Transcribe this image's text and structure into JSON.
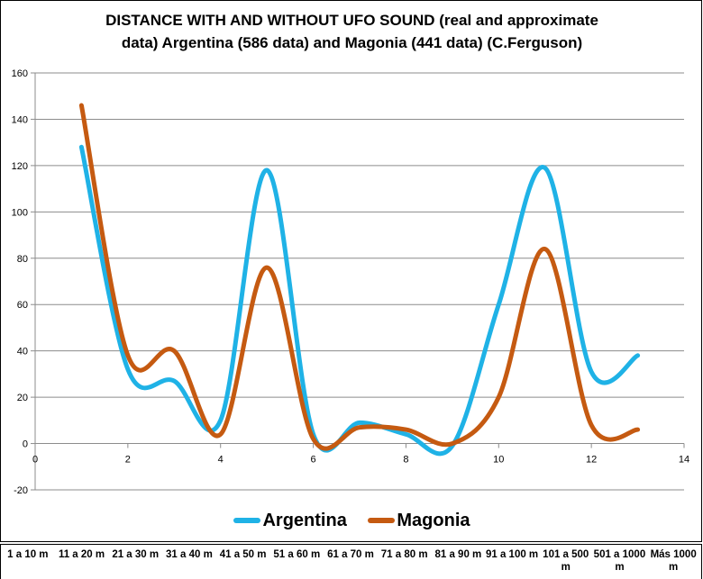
{
  "chart_data": {
    "type": "line",
    "title_lines": [
      "DISTANCE WITH AND WITHOUT UFO SOUND (real and approximate",
      "data) Argentina (586 data) and Magonia (441 data) (C.Ferguson)"
    ],
    "xlim": [
      0,
      14
    ],
    "ylim": [
      -20,
      160
    ],
    "x_ticks": [
      "0",
      "2",
      "4",
      "6",
      "8",
      "10",
      "12",
      "14"
    ],
    "y_ticks": [
      "-20",
      "0",
      "20",
      "40",
      "60",
      "80",
      "100",
      "120",
      "140",
      "160"
    ],
    "grid": "horizontal",
    "legend_position": "bottom",
    "x": [
      1,
      2,
      3,
      4,
      5,
      6,
      7,
      8,
      9,
      10,
      11,
      12,
      13
    ],
    "series": [
      {
        "name": "Argentina",
        "color": "#1fb2e6",
        "values": [
          128,
          32,
          27,
          10,
          118,
          4,
          9,
          4,
          -1,
          60,
          119,
          31,
          38
        ]
      },
      {
        "name": "Magonia",
        "color": "#c55a11",
        "values": [
          146,
          38,
          40,
          4,
          76,
          2,
          7,
          6,
          0,
          20,
          84,
          8,
          6
        ]
      }
    ],
    "categories": [
      "1 a 10 m",
      "11 a 20 m",
      "21 a 30 m",
      "31 a 40 m",
      "41 a 50 m",
      "51 a 60 m",
      "61 a 70 m",
      "71 a 80 m",
      "81 a 90 m",
      "91 a 100 m",
      "101 a 500 m",
      "501 a 1000 m",
      "Más 1000 m"
    ]
  }
}
